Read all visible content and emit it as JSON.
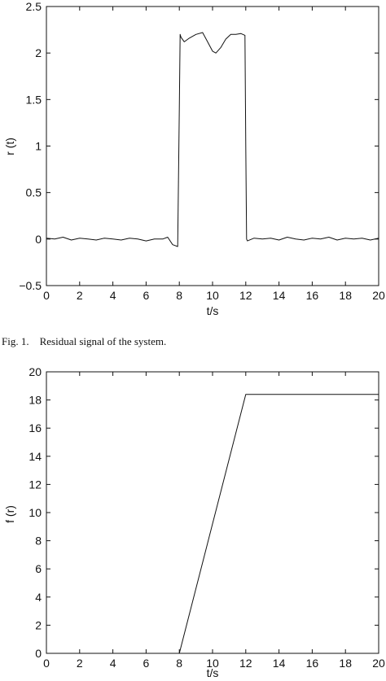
{
  "chart_data": [
    {
      "type": "line",
      "xlabel": "t/s",
      "ylabel": "r (t)",
      "xlim": [
        0,
        20
      ],
      "ylim": [
        -0.5,
        2.5
      ],
      "xticks": [
        0,
        2,
        4,
        6,
        8,
        10,
        12,
        14,
        16,
        18,
        20
      ],
      "yticks": [
        -0.5,
        0,
        0.5,
        1,
        1.5,
        2,
        2.5
      ],
      "ytick_labels": [
        "−0.5",
        "0",
        "0.5",
        "1",
        "1.5",
        "2",
        "2.5"
      ],
      "grid": false,
      "series": [
        {
          "color": "#111111",
          "x": [
            0,
            0.5,
            1,
            1.5,
            2,
            2.5,
            3,
            3.5,
            4,
            4.5,
            5,
            5.5,
            6,
            6.5,
            7,
            7.3,
            7.6,
            7.9,
            8.0,
            8.05,
            8.1,
            8.3,
            8.6,
            9.0,
            9.4,
            9.7,
            10.0,
            10.2,
            10.5,
            10.8,
            11.1,
            11.4,
            11.7,
            11.95,
            12.0,
            12.05,
            12.1,
            12.5,
            13,
            13.5,
            14,
            14.5,
            15,
            15.5,
            16,
            16.5,
            17,
            17.5,
            18,
            18.5,
            19,
            19.5,
            20
          ],
          "y": [
            0.01,
            0.0,
            0.02,
            -0.01,
            0.01,
            0.0,
            -0.01,
            0.01,
            0.0,
            -0.01,
            0.01,
            0.0,
            -0.02,
            0.0,
            0.0,
            0.02,
            -0.06,
            -0.08,
            1.4,
            2.2,
            2.17,
            2.12,
            2.16,
            2.2,
            2.22,
            2.12,
            2.02,
            2.0,
            2.06,
            2.15,
            2.2,
            2.2,
            2.21,
            2.19,
            1.0,
            0.0,
            -0.02,
            0.01,
            0.0,
            0.01,
            -0.01,
            0.02,
            0.0,
            -0.01,
            0.01,
            0.0,
            0.02,
            -0.01,
            0.01,
            0.0,
            0.01,
            -0.01,
            0.01
          ]
        }
      ],
      "caption": "Fig. 1.    Residual signal of the system."
    },
    {
      "type": "line",
      "xlabel": "t/s",
      "ylabel": "f (r)",
      "xlim": [
        0,
        20
      ],
      "ylim": [
        0,
        20
      ],
      "xticks": [
        0,
        2,
        4,
        6,
        8,
        10,
        12,
        14,
        16,
        18,
        20
      ],
      "yticks": [
        0,
        2,
        4,
        6,
        8,
        10,
        12,
        14,
        16,
        18,
        20
      ],
      "ytick_labels": [
        "0",
        "2",
        "4",
        "6",
        "8",
        "10",
        "12",
        "14",
        "16",
        "18",
        "20"
      ],
      "grid": false,
      "series": [
        {
          "color": "#111111",
          "x": [
            8,
            10,
            12,
            20
          ],
          "y": [
            0,
            9.2,
            18.4,
            18.4
          ]
        }
      ]
    }
  ]
}
